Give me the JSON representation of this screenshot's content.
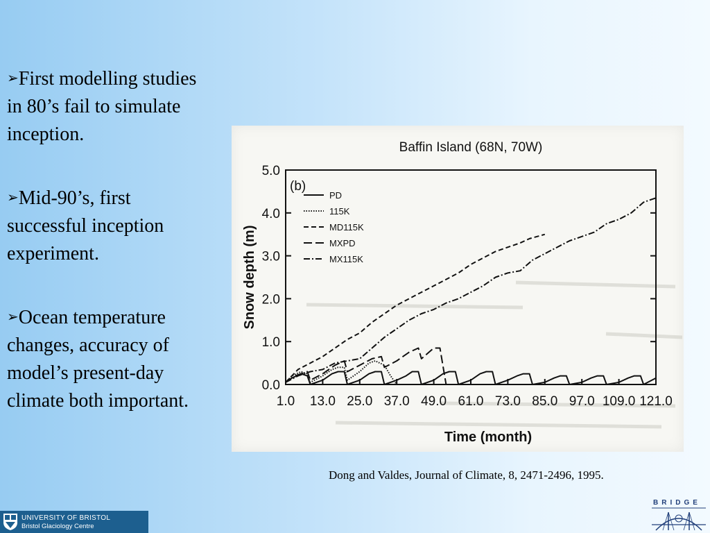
{
  "bullets": [
    {
      "arrow": "➢",
      "text": "First modelling studies in 80’s fail to simulate inception."
    },
    {
      "arrow": "➢",
      "text": "Mid-90’s, first successful inception experiment."
    },
    {
      "arrow": "➢",
      "text": "Ocean temperature changes, accuracy of model’s present-day climate both important."
    }
  ],
  "citation": "Dong and Valdes, Journal of Climate, 8, 2471-2496, 1995.",
  "logos": {
    "university_line1": "UNIVERSITY OF BRISTOL",
    "university_line2": "Bristol Glaciology Centre",
    "bridge": "BRIDGE"
  },
  "chart_data": {
    "type": "line",
    "title": "Baffin Island (68N, 70W)",
    "panel_label": "(b)",
    "xlabel": "Time (month)",
    "ylabel": "Snow depth (m)",
    "xlim": [
      1,
      121
    ],
    "ylim": [
      0,
      5
    ],
    "x_ticks": [
      "1.0",
      "13.0",
      "25.0",
      "37.0",
      "49.0",
      "61.0",
      "73.0",
      "85.0",
      "97.0",
      "109.0",
      "121.0"
    ],
    "y_ticks": [
      "0.0",
      "1.0",
      "2.0",
      "3.0",
      "4.0",
      "5.0"
    ],
    "legend_position": "top-left",
    "series": [
      {
        "name": "PD",
        "style": "solid",
        "x": [
          1,
          3,
          6,
          8,
          9,
          13,
          16,
          18,
          20,
          21,
          25,
          28,
          30,
          32,
          33,
          37,
          40,
          42,
          44,
          45,
          49,
          52,
          54,
          56,
          57,
          61,
          64,
          66,
          68,
          69,
          73,
          76,
          78,
          80,
          81,
          85,
          88,
          90,
          92,
          93,
          97,
          100,
          102,
          104,
          105,
          109,
          112,
          114,
          116,
          117,
          121
        ],
        "y": [
          0.05,
          0.15,
          0.25,
          0.2,
          0.0,
          0.1,
          0.25,
          0.3,
          0.3,
          0.0,
          0.1,
          0.25,
          0.3,
          0.3,
          0.0,
          0.1,
          0.2,
          0.3,
          0.3,
          0.0,
          0.1,
          0.25,
          0.3,
          0.3,
          0.0,
          0.1,
          0.25,
          0.3,
          0.3,
          0.0,
          0.1,
          0.2,
          0.25,
          0.25,
          0.0,
          0.05,
          0.15,
          0.2,
          0.2,
          0.0,
          0.05,
          0.15,
          0.2,
          0.2,
          0.0,
          0.05,
          0.15,
          0.2,
          0.2,
          0.0,
          0.15
        ]
      },
      {
        "name": "115K",
        "style": "dotted",
        "x": [
          1,
          3,
          6,
          8,
          9,
          13,
          16,
          18,
          20,
          21,
          25,
          28,
          30,
          33,
          35,
          37
        ],
        "y": [
          0.05,
          0.2,
          0.3,
          0.25,
          0.05,
          0.2,
          0.35,
          0.4,
          0.4,
          0.1,
          0.3,
          0.5,
          0.55,
          0.45,
          0.2,
          0.0
        ]
      },
      {
        "name": "MD115K",
        "style": "dashed",
        "x": [
          1,
          5,
          9,
          13,
          17,
          21,
          25,
          29,
          33,
          37,
          41,
          45,
          49,
          53,
          57,
          61,
          65,
          69,
          73,
          77,
          80,
          85
        ],
        "y": [
          0.05,
          0.35,
          0.5,
          0.65,
          0.85,
          1.05,
          1.2,
          1.45,
          1.65,
          1.85,
          2.0,
          2.15,
          2.3,
          2.45,
          2.6,
          2.8,
          2.95,
          3.1,
          3.2,
          3.3,
          3.4,
          3.5
        ]
      },
      {
        "name": "MXPD",
        "style": "longdash",
        "x": [
          1,
          4,
          8,
          9,
          13,
          17,
          20,
          21,
          25,
          29,
          32,
          33,
          37,
          41,
          44,
          45,
          49,
          51,
          53,
          57,
          60,
          61
        ],
        "y": [
          0.05,
          0.2,
          0.3,
          0.1,
          0.25,
          0.45,
          0.55,
          0.3,
          0.45,
          0.6,
          0.65,
          0.4,
          0.55,
          0.75,
          0.85,
          0.6,
          0.85,
          0.85,
          0.0,
          0.0,
          0.0,
          0.0
        ]
      },
      {
        "name": "MX115K",
        "style": "dashdot",
        "x": [
          1,
          5,
          9,
          13,
          17,
          21,
          25,
          29,
          33,
          37,
          41,
          45,
          49,
          53,
          57,
          61,
          65,
          69,
          73,
          77,
          81,
          85,
          89,
          93,
          97,
          101,
          105,
          109,
          113,
          117,
          121
        ],
        "y": [
          0.05,
          0.2,
          0.3,
          0.35,
          0.5,
          0.55,
          0.6,
          0.85,
          1.1,
          1.3,
          1.5,
          1.65,
          1.75,
          1.9,
          2.0,
          2.15,
          2.3,
          2.5,
          2.6,
          2.65,
          2.9,
          3.05,
          3.2,
          3.35,
          3.45,
          3.55,
          3.75,
          3.85,
          4.0,
          4.25,
          4.35
        ]
      }
    ]
  }
}
